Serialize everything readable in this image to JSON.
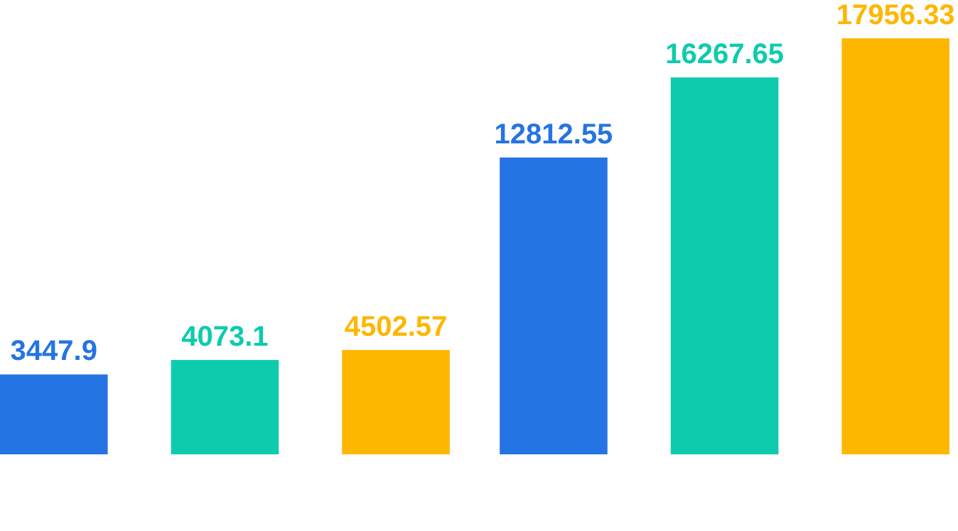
{
  "chart_data": {
    "type": "bar",
    "categories": [
      null,
      null
    ],
    "data_labels": true,
    "series": [
      {
        "color": "#2574e3",
        "values": [
          3447.9,
          12812.55
        ]
      },
      {
        "color": "#0ecbad",
        "values": [
          4073.1,
          16267.65
        ]
      },
      {
        "color": "#fdb700",
        "values": [
          4502.57,
          17956.33
        ]
      }
    ]
  }
}
